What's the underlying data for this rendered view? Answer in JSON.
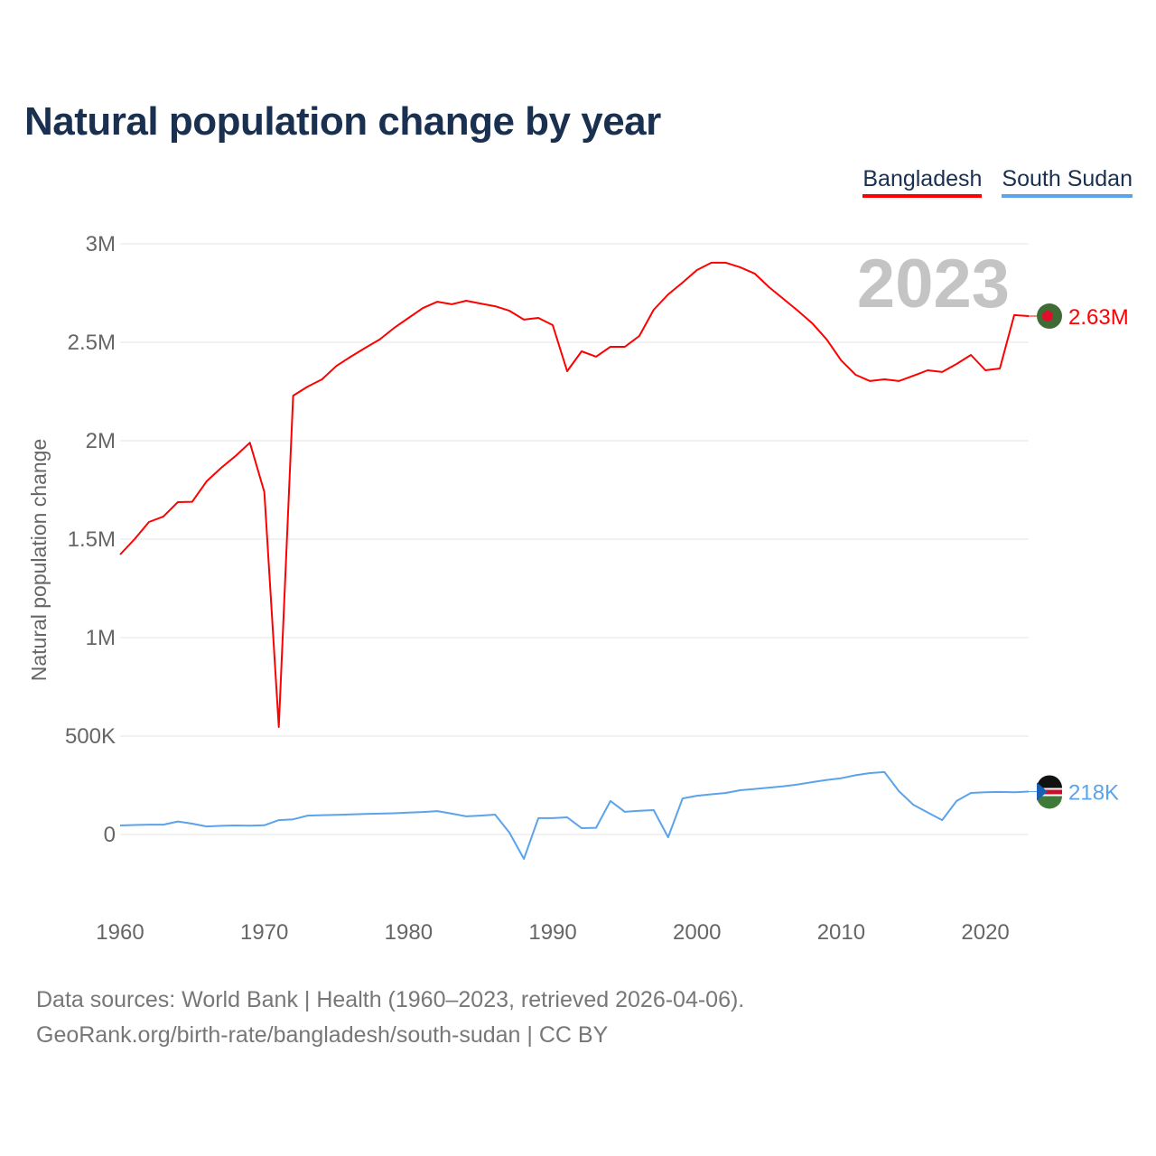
{
  "chart_data": {
    "type": "line",
    "title": "Natural population change by year",
    "xlabel": "",
    "ylabel": "Natural population change",
    "xlim": [
      1960,
      2023
    ],
    "ylim": [
      -250000,
      3000000
    ],
    "x_ticks": [
      1960,
      1970,
      1980,
      1990,
      2000,
      2010,
      2020
    ],
    "y_ticks": [
      0,
      500000,
      1000000,
      1500000,
      2000000,
      2500000,
      3000000
    ],
    "y_tick_labels": [
      "0",
      "500K",
      "1M",
      "1.5M",
      "2M",
      "2.5M",
      "3M"
    ],
    "grid": true,
    "legend_position": "top-right",
    "current_year_label": "2023",
    "x": [
      1960,
      1961,
      1962,
      1963,
      1964,
      1965,
      1966,
      1967,
      1968,
      1969,
      1970,
      1971,
      1972,
      1973,
      1974,
      1975,
      1976,
      1977,
      1978,
      1979,
      1980,
      1981,
      1982,
      1983,
      1984,
      1985,
      1986,
      1987,
      1988,
      1989,
      1990,
      1991,
      1992,
      1993,
      1994,
      1995,
      1996,
      1997,
      1998,
      1999,
      2000,
      2001,
      2002,
      2003,
      2004,
      2005,
      2006,
      2007,
      2008,
      2009,
      2010,
      2011,
      2012,
      2013,
      2014,
      2015,
      2016,
      2017,
      2018,
      2019,
      2020,
      2021,
      2022,
      2023
    ],
    "series": [
      {
        "name": "Bangladesh",
        "color": "#ff0000",
        "end_label": "2.63M",
        "values": [
          1422000,
          1500000,
          1587000,
          1615000,
          1688000,
          1690000,
          1794000,
          1862000,
          1922000,
          1990000,
          1739000,
          546000,
          2229000,
          2275000,
          2312000,
          2380000,
          2427000,
          2472000,
          2514000,
          2573000,
          2624000,
          2674000,
          2706000,
          2693000,
          2711000,
          2697000,
          2683000,
          2660000,
          2615000,
          2624000,
          2587000,
          2353000,
          2454000,
          2427000,
          2477000,
          2477000,
          2532000,
          2665000,
          2743000,
          2803000,
          2867000,
          2904000,
          2904000,
          2881000,
          2849000,
          2780000,
          2720000,
          2660000,
          2596000,
          2514000,
          2408000,
          2335000,
          2303000,
          2312000,
          2303000,
          2330000,
          2358000,
          2349000,
          2390000,
          2436000,
          2358000,
          2367000,
          2638000,
          2633000
        ]
      },
      {
        "name": "South Sudan",
        "color": "#5ba3ea",
        "end_label": "218K",
        "values": [
          46000,
          48000,
          50000,
          50000,
          66000,
          55000,
          41000,
          44000,
          46000,
          45000,
          47000,
          73000,
          77000,
          96000,
          98000,
          100000,
          102000,
          104000,
          106000,
          108000,
          111000,
          114000,
          119000,
          106000,
          92000,
          96000,
          101000,
          9000,
          -124000,
          83000,
          83000,
          87000,
          32000,
          34000,
          170000,
          115000,
          120000,
          124000,
          -14000,
          183000,
          197000,
          204000,
          211000,
          225000,
          231000,
          238000,
          245000,
          254000,
          266000,
          277000,
          286000,
          301000,
          312000,
          317000,
          220000,
          151000,
          112000,
          73000,
          170000,
          211000,
          214000,
          216000,
          214000,
          218000
        ]
      }
    ]
  },
  "footer": {
    "line1": "Data sources: World Bank | Health (1960–2023, retrieved 2026-04-06).",
    "line2": "GeoRank.org/birth-rate/bangladesh/south-sudan | CC BY"
  }
}
